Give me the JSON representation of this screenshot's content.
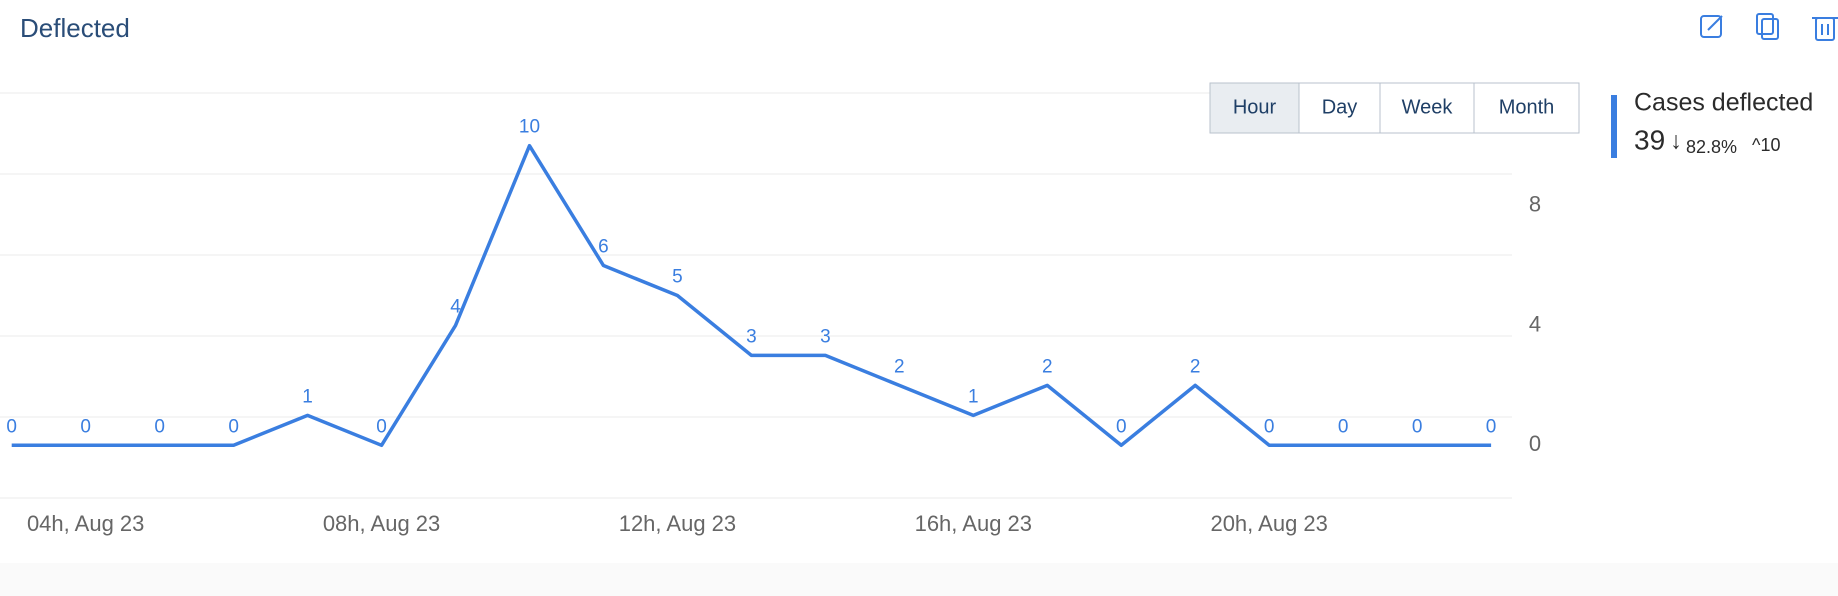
{
  "title": "Deflected",
  "buttons": [
    "Hour",
    "Day",
    "Week",
    "Month"
  ],
  "summary": {
    "label": "Cases deflected",
    "total": "39",
    "arrow": "↓",
    "change": "82.8%",
    "peak": "^10"
  },
  "chart_data": {
    "type": "line",
    "categories": [
      null,
      "04h, Aug 23",
      null,
      null,
      null,
      "08h, Aug 23",
      null,
      null,
      null,
      "12h, Aug 23",
      null,
      null,
      null,
      "16h, Aug 23",
      null,
      null,
      null,
      "20h, Aug 23",
      null,
      null,
      null
    ],
    "values": [
      0,
      0,
      0,
      0,
      1,
      0,
      4,
      10,
      6,
      5,
      3,
      3,
      2,
      1,
      2,
      0,
      2,
      0,
      0,
      0,
      0
    ],
    "color": "#3a7ee0",
    "ylim": [
      -1.76,
      11.76
    ],
    "yticks": [
      0,
      4,
      8
    ],
    "grid": true
  }
}
